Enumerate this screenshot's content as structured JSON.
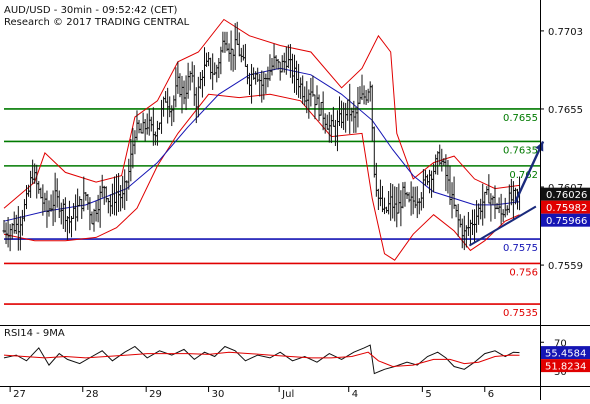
{
  "chart_data": [
    {
      "type": "candlestick",
      "title": "AUD/USD - 30min - 09:52:42 (CET)",
      "subtitle": "Research © 2017 TRADING CENTRAL",
      "x_ticks": [
        "27",
        "28",
        "29",
        "30",
        "Jul",
        "4",
        "5",
        "6"
      ],
      "y_ticks": [
        "0.7703",
        "0.7655",
        "0.7607",
        "0.7559"
      ],
      "ylim": [
        0.7524,
        0.7722
      ],
      "grid": false,
      "close_path": [
        [
          0,
          0.758
        ],
        [
          14,
          0.7584
        ],
        [
          22,
          0.7598
        ],
        [
          28,
          0.7616
        ],
        [
          34,
          0.7604
        ],
        [
          42,
          0.7592
        ],
        [
          50,
          0.76
        ],
        [
          58,
          0.7594
        ],
        [
          64,
          0.7586
        ],
        [
          72,
          0.7594
        ],
        [
          80,
          0.7602
        ],
        [
          86,
          0.7588
        ],
        [
          92,
          0.7598
        ],
        [
          98,
          0.7608
        ],
        [
          104,
          0.7596
        ],
        [
          110,
          0.7604
        ],
        [
          116,
          0.76
        ],
        [
          122,
          0.7616
        ],
        [
          128,
          0.7642
        ],
        [
          134,
          0.764
        ],
        [
          140,
          0.7646
        ],
        [
          146,
          0.764
        ],
        [
          152,
          0.7648
        ],
        [
          158,
          0.7662
        ],
        [
          164,
          0.7656
        ],
        [
          170,
          0.767
        ],
        [
          176,
          0.7664
        ],
        [
          182,
          0.7676
        ],
        [
          188,
          0.766
        ],
        [
          194,
          0.7678
        ],
        [
          200,
          0.7682
        ],
        [
          206,
          0.7676
        ],
        [
          212,
          0.769
        ],
        [
          216,
          0.77
        ],
        [
          222,
          0.769
        ],
        [
          228,
          0.7694
        ],
        [
          234,
          0.7682
        ],
        [
          240,
          0.7674
        ],
        [
          246,
          0.768
        ],
        [
          252,
          0.767
        ],
        [
          258,
          0.7676
        ],
        [
          264,
          0.7684
        ],
        [
          270,
          0.768
        ],
        [
          276,
          0.7686
        ],
        [
          282,
          0.7678
        ],
        [
          288,
          0.7672
        ],
        [
          294,
          0.7664
        ],
        [
          300,
          0.7668
        ],
        [
          306,
          0.7658
        ],
        [
          312,
          0.7652
        ],
        [
          318,
          0.7644
        ],
        [
          324,
          0.7642
        ],
        [
          330,
          0.765
        ],
        [
          336,
          0.7656
        ],
        [
          342,
          0.7648
        ],
        [
          348,
          0.766
        ],
        [
          354,
          0.7664
        ],
        [
          358,
          0.7672
        ],
        [
          362,
          0.7618
        ],
        [
          366,
          0.76
        ],
        [
          372,
          0.759
        ],
        [
          378,
          0.7598
        ],
        [
          384,
          0.7592
        ],
        [
          390,
          0.7602
        ],
        [
          396,
          0.7596
        ],
        [
          402,
          0.76
        ],
        [
          408,
          0.7604
        ],
        [
          414,
          0.7614
        ],
        [
          420,
          0.7618
        ],
        [
          426,
          0.7626
        ],
        [
          432,
          0.7614
        ],
        [
          438,
          0.7598
        ],
        [
          444,
          0.7586
        ],
        [
          450,
          0.7578
        ],
        [
          456,
          0.7584
        ],
        [
          462,
          0.759
        ],
        [
          468,
          0.7598
        ],
        [
          474,
          0.7602
        ],
        [
          480,
          0.7596
        ],
        [
          486,
          0.759
        ],
        [
          492,
          0.7598
        ],
        [
          498,
          0.76
        ],
        [
          504,
          0.7603
        ]
      ],
      "moving_average": [
        [
          0,
          0.7586
        ],
        [
          40,
          0.7592
        ],
        [
          80,
          0.7596
        ],
        [
          120,
          0.7606
        ],
        [
          150,
          0.7622
        ],
        [
          180,
          0.7644
        ],
        [
          210,
          0.7664
        ],
        [
          240,
          0.7676
        ],
        [
          270,
          0.768
        ],
        [
          300,
          0.7676
        ],
        [
          330,
          0.7664
        ],
        [
          360,
          0.7648
        ],
        [
          380,
          0.763
        ],
        [
          400,
          0.7614
        ],
        [
          420,
          0.7604
        ],
        [
          440,
          0.76
        ],
        [
          460,
          0.7596
        ],
        [
          480,
          0.7596
        ],
        [
          504,
          0.7598
        ]
      ],
      "upper_band": [
        [
          0,
          0.7594
        ],
        [
          30,
          0.761
        ],
        [
          40,
          0.7628
        ],
        [
          60,
          0.7616
        ],
        [
          90,
          0.761
        ],
        [
          115,
          0.7614
        ],
        [
          128,
          0.765
        ],
        [
          150,
          0.766
        ],
        [
          170,
          0.7684
        ],
        [
          190,
          0.769
        ],
        [
          215,
          0.771
        ],
        [
          240,
          0.77
        ],
        [
          270,
          0.7694
        ],
        [
          300,
          0.769
        ],
        [
          330,
          0.7668
        ],
        [
          350,
          0.768
        ],
        [
          366,
          0.77
        ],
        [
          378,
          0.769
        ],
        [
          384,
          0.764
        ],
        [
          400,
          0.7612
        ],
        [
          420,
          0.7622
        ],
        [
          440,
          0.7626
        ],
        [
          460,
          0.7612
        ],
        [
          480,
          0.7606
        ],
        [
          504,
          0.7608
        ]
      ],
      "lower_band": [
        [
          0,
          0.7578
        ],
        [
          30,
          0.7574
        ],
        [
          60,
          0.7574
        ],
        [
          90,
          0.7576
        ],
        [
          110,
          0.7582
        ],
        [
          130,
          0.7594
        ],
        [
          150,
          0.762
        ],
        [
          170,
          0.764
        ],
        [
          200,
          0.7664
        ],
        [
          230,
          0.7662
        ],
        [
          260,
          0.7664
        ],
        [
          290,
          0.766
        ],
        [
          320,
          0.7638
        ],
        [
          350,
          0.764
        ],
        [
          360,
          0.76
        ],
        [
          372,
          0.7566
        ],
        [
          382,
          0.7562
        ],
        [
          400,
          0.7578
        ],
        [
          420,
          0.759
        ],
        [
          440,
          0.758
        ],
        [
          456,
          0.7568
        ],
        [
          470,
          0.7574
        ],
        [
          490,
          0.7586
        ],
        [
          504,
          0.759
        ]
      ],
      "support_line": {
        "from": [
          455,
          0.7571
        ],
        "to": [
          520,
          0.7595
        ],
        "color": "#1a2a7c"
      },
      "projection_arrow": {
        "from": [
          500,
          0.7598
        ],
        "to": [
          527,
          0.7635
        ],
        "color": "#1a2a7c"
      },
      "levels": [
        {
          "value": 0.7655,
          "label": "0.7655",
          "color": "#007a00"
        },
        {
          "value": 0.7635,
          "label": "0.7635",
          "color": "#007a00"
        },
        {
          "value": 0.762,
          "label": "0.762",
          "color": "#007a00"
        },
        {
          "value": 0.7575,
          "label": "0.7575",
          "color": "#1515b4"
        },
        {
          "value": 0.756,
          "label": "0.756",
          "color": "#e00000"
        },
        {
          "value": 0.7535,
          "label": "0.7535",
          "color": "#e00000"
        }
      ],
      "price_tags": [
        {
          "value": 0.76026,
          "label": "0.76026",
          "color": "#111111"
        },
        {
          "value": 0.75982,
          "label": "0.75982",
          "color": "#e00000"
        },
        {
          "value": 0.75966,
          "label": "0.75966",
          "color": "#1515b4"
        }
      ],
      "colors": {
        "price": "#111111",
        "bands": "#e00000",
        "moving_average": "#1515b4",
        "arrow": "#1a2a7c"
      }
    },
    {
      "type": "line",
      "title": "RSI14 - 9MA",
      "y_ticks": [
        "70",
        "30"
      ],
      "ylim": [
        10,
        90
      ],
      "series": [
        {
          "color": "#111111",
          "points": [
            [
              0,
              48
            ],
            [
              12,
              52
            ],
            [
              22,
              44
            ],
            [
              34,
              62
            ],
            [
              44,
              38
            ],
            [
              54,
              54
            ],
            [
              62,
              46
            ],
            [
              74,
              40
            ],
            [
              86,
              50
            ],
            [
              96,
              58
            ],
            [
              106,
              44
            ],
            [
              118,
              56
            ],
            [
              128,
              64
            ],
            [
              140,
              48
            ],
            [
              152,
              58
            ],
            [
              164,
              52
            ],
            [
              176,
              60
            ],
            [
              186,
              46
            ],
            [
              196,
              56
            ],
            [
              206,
              50
            ],
            [
              216,
              64
            ],
            [
              226,
              58
            ],
            [
              236,
              44
            ],
            [
              248,
              52
            ],
            [
              260,
              48
            ],
            [
              270,
              56
            ],
            [
              282,
              44
            ],
            [
              294,
              50
            ],
            [
              306,
              42
            ],
            [
              318,
              54
            ],
            [
              330,
              46
            ],
            [
              342,
              56
            ],
            [
              352,
              62
            ],
            [
              358,
              66
            ],
            [
              362,
              26
            ],
            [
              372,
              32
            ],
            [
              382,
              36
            ],
            [
              394,
              42
            ],
            [
              404,
              38
            ],
            [
              414,
              50
            ],
            [
              424,
              56
            ],
            [
              432,
              48
            ],
            [
              440,
              36
            ],
            [
              450,
              32
            ],
            [
              460,
              42
            ],
            [
              470,
              54
            ],
            [
              480,
              58
            ],
            [
              490,
              50
            ],
            [
              498,
              56
            ],
            [
              504,
              55.45
            ]
          ]
        },
        {
          "color": "#e00000",
          "points": [
            [
              0,
              52
            ],
            [
              20,
              50
            ],
            [
              40,
              48
            ],
            [
              60,
              50
            ],
            [
              80,
              48
            ],
            [
              100,
              50
            ],
            [
              120,
              52
            ],
            [
              140,
              54
            ],
            [
              160,
              54
            ],
            [
              180,
              54
            ],
            [
              200,
              53
            ],
            [
              220,
              56
            ],
            [
              240,
              54
            ],
            [
              260,
              52
            ],
            [
              280,
              50
            ],
            [
              300,
              48
            ],
            [
              320,
              48
            ],
            [
              340,
              50
            ],
            [
              356,
              56
            ],
            [
              366,
              44
            ],
            [
              380,
              36
            ],
            [
              400,
              38
            ],
            [
              420,
              46
            ],
            [
              436,
              46
            ],
            [
              450,
              40
            ],
            [
              464,
              42
            ],
            [
              480,
              50
            ],
            [
              495,
              52
            ],
            [
              504,
              51.82
            ]
          ]
        }
      ],
      "value_tags": [
        {
          "value": 55.4584,
          "label": "55.4584",
          "color": "#1515b4"
        },
        {
          "value": 51.8234,
          "label": "51.8234",
          "color": "#e00000"
        }
      ]
    }
  ]
}
